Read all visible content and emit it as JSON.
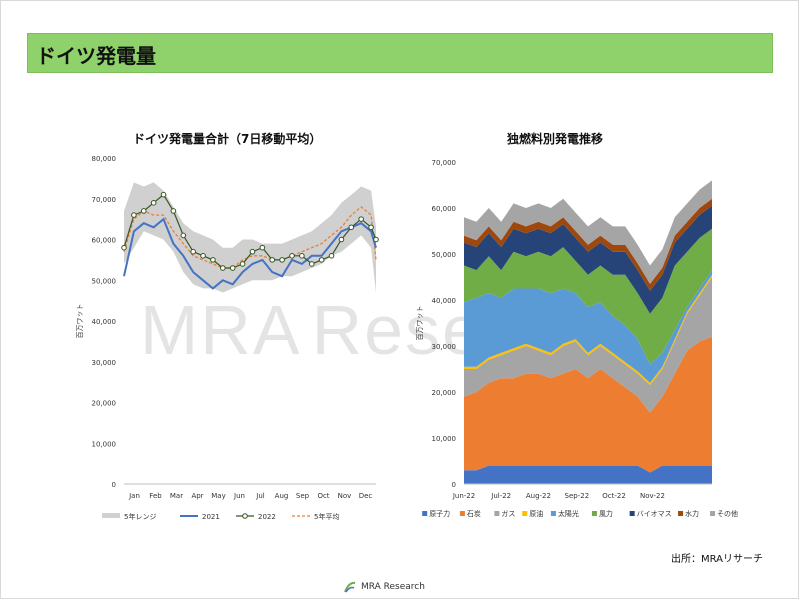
{
  "header": {
    "title": "ドイツ発電量"
  },
  "watermark": {
    "text1": "MRA",
    "text2": "Rese"
  },
  "source": "出所：MRAリサーチ",
  "logo": {
    "text": "MRA Research"
  },
  "colors": {
    "header_bg": "#8fd16a",
    "range": "#d0d0d0",
    "y2021": "#4472c4",
    "y2022_line": "#375623",
    "y2022_marker": "#ffffff",
    "avg5": "#ed7d31",
    "nuclear": "#4472c4",
    "coal": "#ed7d31",
    "gas": "#a5a5a5",
    "oil": "#ffc000",
    "solar": "#5b9bd5",
    "wind": "#70ad47",
    "biomass": "#264478",
    "hydro": "#9e480e",
    "other": "#a5a5a5"
  },
  "chart_data": [
    {
      "type": "line",
      "title": "ドイツ発電量合計（7日移動平均）",
      "ylabel": "百万ワット",
      "ylim": [
        0,
        80000
      ],
      "yticks": [
        "0",
        "10,000",
        "20,000",
        "30,000",
        "40,000",
        "50,000",
        "60,000",
        "70,000",
        "80,000"
      ],
      "x_tick_labels": [
        "Jan",
        "Feb",
        "Mar",
        "Apr",
        "May",
        "Jun",
        "Jul",
        "Aug",
        "Sep",
        "Oct",
        "Nov",
        "Dec"
      ],
      "legend": [
        "5年レンジ",
        "2021",
        "2022",
        "5年平均"
      ],
      "legend_placement": "bottom",
      "x_weeks": [
        1,
        3,
        5,
        7,
        9,
        11,
        13,
        15,
        17,
        19,
        21,
        23,
        25,
        27,
        29,
        31,
        33,
        35,
        37,
        39,
        41,
        43,
        45,
        47,
        49,
        51,
        52
      ],
      "series": [
        {
          "name": "5年レンジ",
          "kind": "range",
          "low": [
            54000,
            58000,
            62000,
            61000,
            60000,
            57000,
            52000,
            49000,
            48000,
            48000,
            47000,
            48000,
            49000,
            50000,
            50000,
            50000,
            51000,
            51000,
            52000,
            53000,
            54000,
            56000,
            57000,
            59000,
            61000,
            58000,
            47000
          ],
          "high": [
            67000,
            74000,
            73000,
            74000,
            72000,
            68000,
            64000,
            62000,
            61000,
            60000,
            58000,
            58000,
            60000,
            60000,
            59000,
            59000,
            59000,
            60000,
            61000,
            62000,
            64000,
            66000,
            69000,
            71000,
            73000,
            72000,
            63000
          ]
        },
        {
          "name": "2021",
          "kind": "line",
          "values": [
            51000,
            62000,
            64000,
            63000,
            65000,
            59000,
            56000,
            52000,
            50000,
            48000,
            50000,
            49000,
            52000,
            54000,
            55000,
            52000,
            51000,
            55000,
            54000,
            56000,
            56000,
            59000,
            62000,
            63000,
            64000,
            62000,
            58000
          ]
        },
        {
          "name": "2022",
          "kind": "marker-line",
          "values": [
            58000,
            66000,
            67000,
            69000,
            71000,
            67000,
            61000,
            57000,
            56000,
            55000,
            53000,
            53000,
            54000,
            57000,
            58000,
            55000,
            55000,
            56000,
            56000,
            54000,
            55000,
            56000,
            60000,
            63000,
            65000,
            63000,
            60000
          ]
        },
        {
          "name": "5年平均",
          "kind": "dashed",
          "values": [
            57000,
            65000,
            67000,
            66000,
            66000,
            62000,
            59000,
            56000,
            55000,
            54000,
            53000,
            53000,
            55000,
            56000,
            56000,
            55000,
            55000,
            56000,
            57000,
            58000,
            59000,
            61000,
            63000,
            66000,
            68000,
            66000,
            55000
          ]
        }
      ]
    },
    {
      "type": "area",
      "stacked": true,
      "title": "独燃料別発電推移",
      "ylabel": "百万ワット",
      "ylim": [
        0,
        70000
      ],
      "yticks": [
        "0",
        "10,000",
        "20,000",
        "30,000",
        "40,000",
        "50,000",
        "60,000",
        "70,000"
      ],
      "x_tick_labels": [
        "Jun-22",
        "Jul-22",
        "Aug-22",
        "Sep-22",
        "Oct-22",
        "Nov-22"
      ],
      "legend_placement": "bottom",
      "x_days": [
        0,
        10,
        20,
        30,
        40,
        50,
        60,
        70,
        80,
        90,
        100,
        110,
        120,
        130,
        140,
        150,
        160,
        170,
        180,
        190,
        200
      ],
      "series": [
        {
          "name": "原子力",
          "values": [
            3000,
            3000,
            4000,
            4000,
            4000,
            4000,
            4000,
            4000,
            4000,
            4000,
            4000,
            4000,
            4000,
            4000,
            4000,
            2500,
            4000,
            4000,
            4000,
            4000,
            4000
          ]
        },
        {
          "name": "石炭",
          "values": [
            16000,
            17000,
            18000,
            19000,
            19000,
            20000,
            20000,
            19000,
            20000,
            21000,
            19000,
            21000,
            19000,
            17000,
            15000,
            13000,
            15000,
            20000,
            25000,
            27000,
            28000
          ]
        },
        {
          "name": "ガス",
          "values": [
            6000,
            5000,
            5000,
            5000,
            6000,
            6000,
            5000,
            5000,
            6000,
            6000,
            5000,
            5000,
            5000,
            5000,
            5000,
            6000,
            6000,
            7000,
            8000,
            10000,
            13000
          ]
        },
        {
          "name": "原油",
          "values": [
            500,
            500,
            500,
            500,
            500,
            500,
            500,
            500,
            500,
            500,
            500,
            500,
            500,
            500,
            500,
            500,
            500,
            500,
            500,
            500,
            500
          ]
        },
        {
          "name": "太陽光",
          "values": [
            14000,
            15000,
            14000,
            12000,
            13000,
            12000,
            13000,
            13000,
            12000,
            10000,
            10000,
            9000,
            8000,
            8000,
            7000,
            4000,
            3000,
            2000,
            1000,
            1000,
            1000
          ]
        },
        {
          "name": "風力",
          "values": [
            8000,
            6000,
            8000,
            6000,
            8000,
            7000,
            8000,
            8000,
            9000,
            7000,
            7000,
            8000,
            9000,
            11000,
            10000,
            11000,
            12000,
            14000,
            12000,
            11000,
            9000
          ]
        },
        {
          "name": "バイオマス",
          "values": [
            5000,
            5000,
            5000,
            5000,
            5000,
            5000,
            5000,
            5000,
            5000,
            5000,
            5000,
            5000,
            5000,
            5000,
            5000,
            5000,
            5000,
            5000,
            5000,
            5000,
            5000
          ]
        },
        {
          "name": "水力",
          "values": [
            1500,
            1500,
            1500,
            1500,
            1500,
            1500,
            1500,
            1500,
            1500,
            1500,
            1500,
            1500,
            1500,
            1500,
            1500,
            1500,
            1500,
            1500,
            1500,
            1500,
            1500
          ]
        },
        {
          "name": "その他",
          "values": [
            4000,
            4000,
            4000,
            4000,
            4000,
            4000,
            4000,
            4000,
            4000,
            4000,
            4000,
            4000,
            4000,
            4000,
            4000,
            4000,
            4000,
            4000,
            4000,
            4000,
            4000
          ]
        }
      ]
    }
  ]
}
